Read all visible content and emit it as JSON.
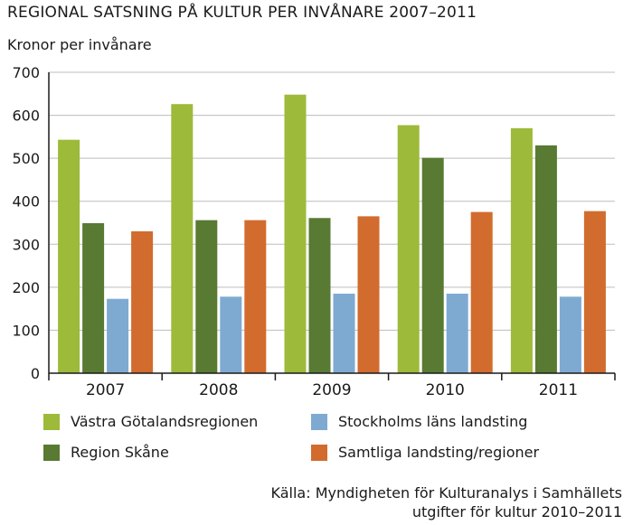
{
  "chart_data": {
    "type": "bar",
    "title": "REGIONAL SATSNING PÅ KULTUR PER INVÅNARE 2007–2011",
    "ylabel": "Kronor per invånare",
    "xlabel": "",
    "categories": [
      "2007",
      "2008",
      "2009",
      "2010",
      "2011"
    ],
    "ylim": [
      0,
      700
    ],
    "yticks": [
      0,
      100,
      200,
      300,
      400,
      500,
      600,
      700
    ],
    "grid": true,
    "legend_position": "bottom",
    "series": [
      {
        "name": "Västra Götalandsregionen",
        "color": "#9dba3a",
        "values": [
          543,
          626,
          648,
          577,
          570
        ]
      },
      {
        "name": "Region Skåne",
        "color": "#587a33",
        "values": [
          349,
          356,
          361,
          501,
          530
        ]
      },
      {
        "name": "Stockholms läns landsting",
        "color": "#7eaad2",
        "values": [
          173,
          178,
          185,
          185,
          178
        ]
      },
      {
        "name": "Samtliga landsting/regioner",
        "color": "#d26b2e",
        "values": [
          330,
          356,
          365,
          375,
          377
        ]
      }
    ]
  },
  "source": {
    "line1": "Källa: Myndigheten för Kulturanalys i Samhällets",
    "line2": "utgifter för kultur 2010–2011"
  }
}
